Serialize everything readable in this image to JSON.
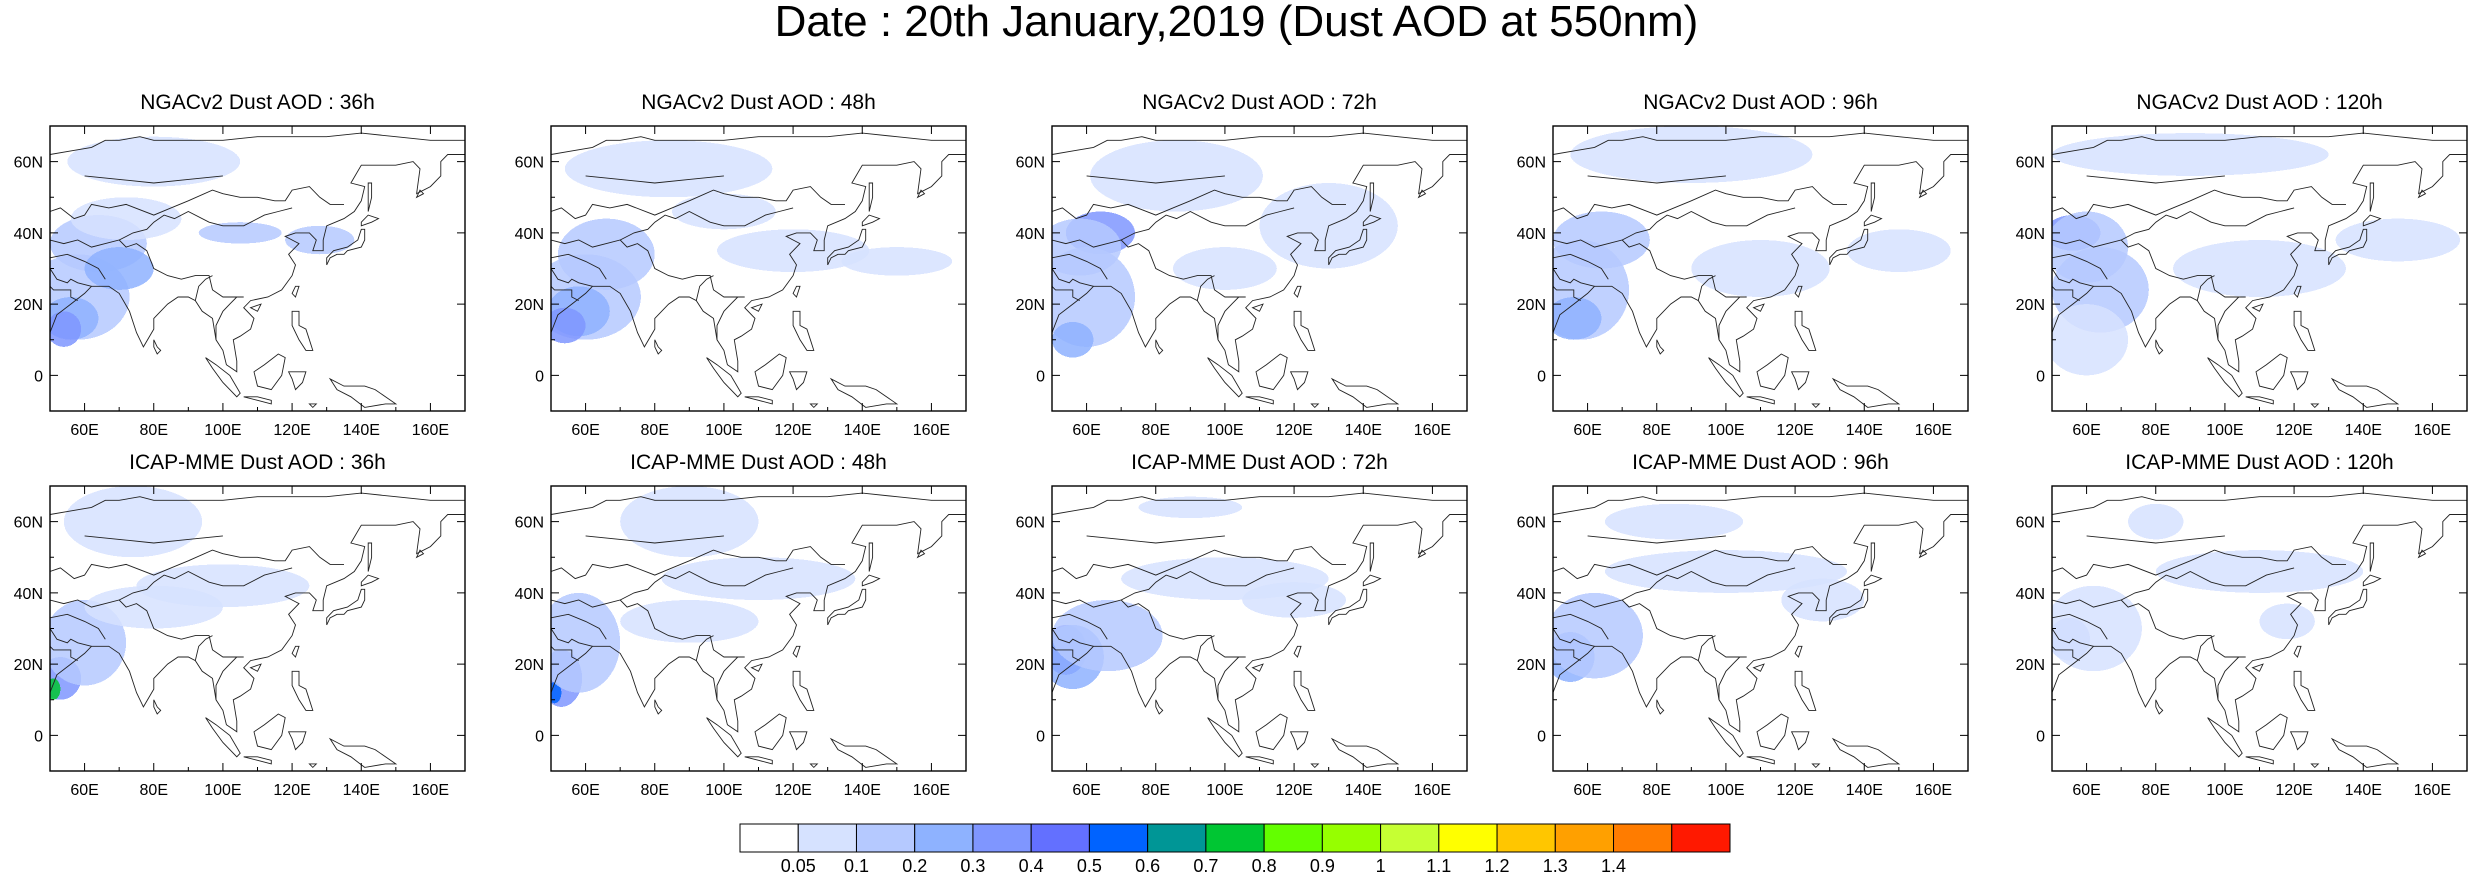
{
  "title": "Date : 20th January,2019 (Dust AOD at 550nm)",
  "map": {
    "lon_range": [
      50,
      170
    ],
    "lat_range": [
      -10,
      70
    ],
    "lon_ticks": [
      60,
      80,
      100,
      120,
      140,
      160
    ],
    "lon_tick_labels": [
      "60E",
      "80E",
      "100E",
      "120E",
      "140E",
      "160E"
    ],
    "lat_ticks": [
      0,
      20,
      40,
      60
    ],
    "lat_tick_labels": [
      "0",
      "20N",
      "40N",
      "60N"
    ],
    "coastline_color": "#222222"
  },
  "panels": [
    {
      "title": "NGACv2 Dust AOD : 36h"
    },
    {
      "title": "NGACv2 Dust AOD : 48h"
    },
    {
      "title": "NGACv2 Dust AOD : 72h"
    },
    {
      "title": "NGACv2 Dust AOD : 96h"
    },
    {
      "title": "NGACv2 Dust AOD : 120h"
    },
    {
      "title": "ICAP-MME Dust AOD : 36h"
    },
    {
      "title": "ICAP-MME Dust AOD : 48h"
    },
    {
      "title": "ICAP-MME Dust AOD : 72h"
    },
    {
      "title": "ICAP-MME Dust AOD : 96h"
    },
    {
      "title": "ICAP-MME Dust AOD : 120h"
    }
  ],
  "colorbar": {
    "labels": [
      "0.05",
      "0.1",
      "0.2",
      "0.3",
      "0.4",
      "0.5",
      "0.6",
      "0.7",
      "0.8",
      "0.9",
      "1",
      "1.1",
      "1.2",
      "1.3",
      "1.4"
    ],
    "colors": [
      "#ffffff",
      "#d6e2ff",
      "#b5c9ff",
      "#8eb2ff",
      "#7f96ff",
      "#6370ff",
      "#0063ff",
      "#009696",
      "#00c633",
      "#63ff00",
      "#96ff00",
      "#c6ff33",
      "#ffff00",
      "#ffc600",
      "#ffa000",
      "#ff7c00",
      "#ff1900"
    ]
  }
}
